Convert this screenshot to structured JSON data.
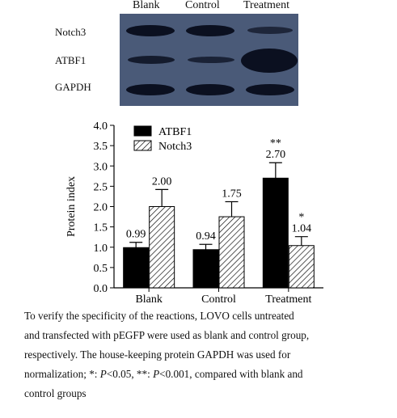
{
  "blot": {
    "columns": [
      "Blank",
      "Control",
      "Treatment"
    ],
    "rows": [
      {
        "label": "Notch3",
        "intensity": [
          0.85,
          0.85,
          0.45
        ]
      },
      {
        "label": "ATBF1",
        "intensity": [
          0.7,
          0.6,
          1.0
        ]
      },
      {
        "label": "GAPDH",
        "intensity": [
          0.85,
          0.85,
          0.85
        ]
      }
    ]
  },
  "chart_data": {
    "type": "bar",
    "categories": [
      "Blank",
      "Control",
      "Treatment"
    ],
    "series": [
      {
        "name": "ATBF1",
        "values": [
          0.99,
          0.94,
          2.7
        ],
        "errors": [
          0.13,
          0.13,
          0.38
        ],
        "labels": [
          "0.99",
          "0.94",
          "2.70"
        ],
        "significance": [
          "",
          "",
          "**"
        ],
        "fill": "solid",
        "color": "#000000"
      },
      {
        "name": "Notch3",
        "values": [
          2.0,
          1.75,
          1.04
        ],
        "errors": [
          0.42,
          0.37,
          0.22
        ],
        "labels": [
          "2.00",
          "1.75",
          "1.04"
        ],
        "significance": [
          "",
          "",
          "*"
        ],
        "fill": "hatched",
        "color": "#000000"
      }
    ],
    "xlabel": "",
    "ylabel": "Protein index",
    "ylim": [
      0,
      4.0
    ],
    "yticks": [
      "0.0",
      "0.5",
      "1.0",
      "1.5",
      "2.0",
      "2.5",
      "3.0",
      "3.5",
      "4.0"
    ],
    "grid": false,
    "legend_position": "top-left"
  },
  "caption": {
    "line1": "To verify the specificity of the reactions, LOVO cells untreated",
    "line2": "and transfected with pEGFP were used as blank and control group,",
    "line3": "respectively. The house-keeping protein GAPDH was used for",
    "line4_a": "normalization; *: ",
    "p_symbol": "P",
    "line4_b": "<0.05, **: ",
    "line4_c": "<0.001, compared with blank and",
    "line5": "control groups"
  }
}
